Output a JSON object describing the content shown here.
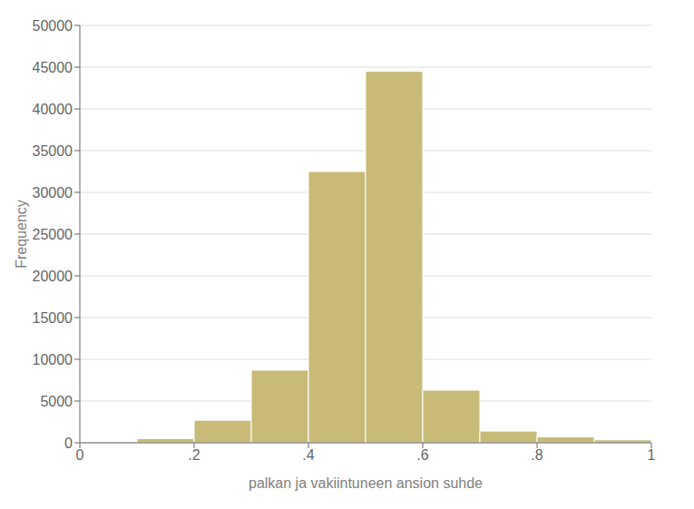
{
  "chart_data": {
    "type": "histogram",
    "xlabel": "palkan ja vakiintuneen ansion suhde",
    "ylabel": "Frequency",
    "bins": [
      0.1,
      0.2,
      0.3,
      0.4,
      0.5,
      0.6,
      0.7,
      0.8,
      0.9,
      1.0
    ],
    "counts": [
      500,
      2700,
      8700,
      32500,
      44500,
      6300,
      1400,
      700,
      350
    ],
    "color": "#C8BB78",
    "xlim": [
      0,
      1.0
    ],
    "ylim": [
      0,
      50000
    ],
    "xticks": [
      0,
      {
        "value": 0.2,
        "label": ".2"
      },
      {
        "value": 0.4,
        "label": ".4"
      },
      {
        "value": 0.6,
        "label": ".6"
      },
      {
        "value": 0.8,
        "label": ".8"
      },
      1
    ],
    "yticks": [
      0,
      5000,
      10000,
      15000,
      20000,
      25000,
      30000,
      35000,
      40000,
      45000,
      50000
    ],
    "grid": true
  }
}
